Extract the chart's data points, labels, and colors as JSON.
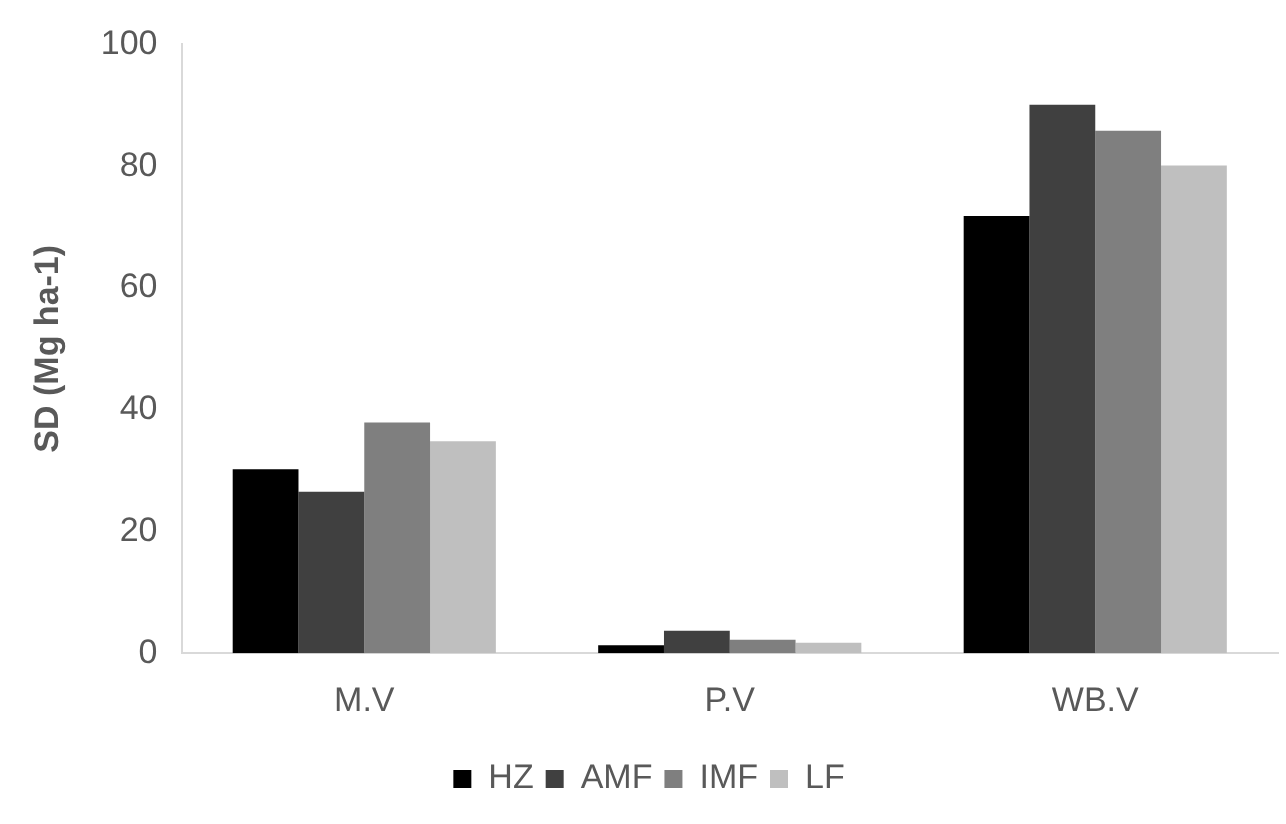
{
  "chart_data": {
    "type": "bar",
    "ylabel": "SD (Mg ha-1)",
    "categories": [
      "M.V",
      "P.V",
      "WB.V"
    ],
    "series": [
      {
        "name": "HZ",
        "color": "#000000",
        "values": [
          30.2,
          1.3,
          71.8
        ]
      },
      {
        "name": "AMF",
        "color": "#404040",
        "values": [
          26.5,
          3.7,
          90.1
        ]
      },
      {
        "name": "IMF",
        "color": "#7f7f7f",
        "values": [
          37.9,
          2.2,
          85.8
        ]
      },
      {
        "name": "LF",
        "color": "#bfbfbf",
        "values": [
          34.8,
          1.7,
          80.1
        ]
      }
    ],
    "ylim": [
      0,
      100
    ],
    "yticks": [
      0,
      20,
      40,
      60,
      80,
      100
    ],
    "grid": false,
    "legend": "bottom"
  }
}
